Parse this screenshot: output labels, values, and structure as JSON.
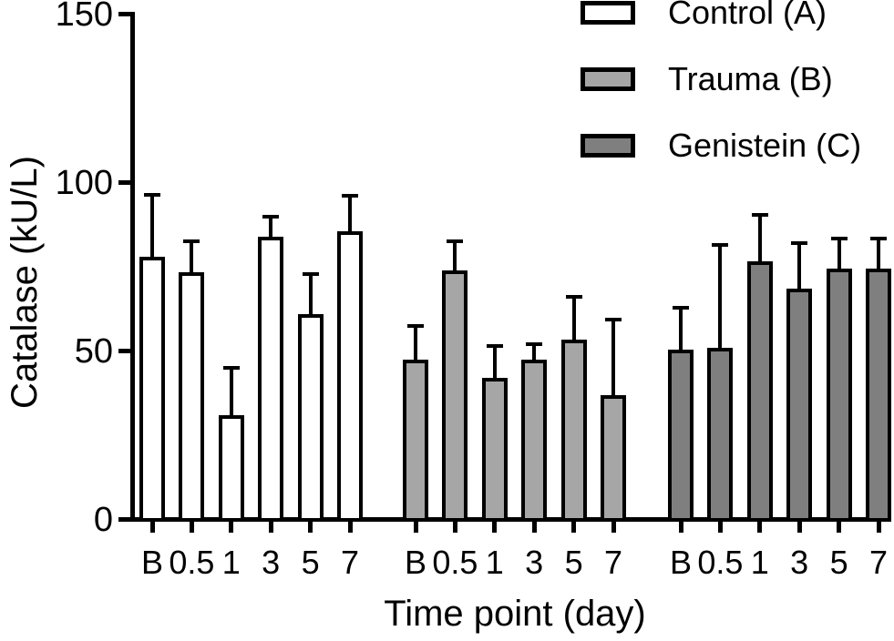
{
  "chart_data": {
    "type": "bar",
    "title": "",
    "xlabel": "Time point (day)",
    "ylabel": "Catalase (kU/L)",
    "ylim": [
      0,
      150
    ],
    "yticks": [
      0,
      50,
      100,
      150
    ],
    "categories": [
      "B",
      "0.5",
      "1",
      "3",
      "5",
      "7"
    ],
    "groups": 3,
    "error_bars": "upper SD whiskers with caps",
    "legend_position": "top-right",
    "grid": "off",
    "series": [
      {
        "name": "Control (A)",
        "fill": "#ffffff",
        "values": [
          78,
          73.5,
          31,
          84,
          61,
          85.5
        ],
        "sd": [
          19,
          9.5,
          14.5,
          6.5,
          12.5,
          11
        ]
      },
      {
        "name": "Trauma (B)",
        "fill": "#a6a6a6",
        "values": [
          47.5,
          74,
          42,
          47.5,
          53.5,
          37
        ],
        "sd": [
          10.5,
          9,
          10,
          5,
          13,
          23
        ]
      },
      {
        "name": "Genistein (C)",
        "fill": "#7f7f7f",
        "values": [
          50.5,
          51,
          76.5,
          68.5,
          74.5,
          74.5
        ],
        "sd": [
          13,
          31,
          14.5,
          14,
          9.5,
          9.5
        ]
      }
    ]
  },
  "colors": {
    "axis": "#000000",
    "background": "#ffffff",
    "control_fill": "#ffffff",
    "trauma_fill": "#a6a6a6",
    "genistein_fill": "#7f7f7f"
  }
}
